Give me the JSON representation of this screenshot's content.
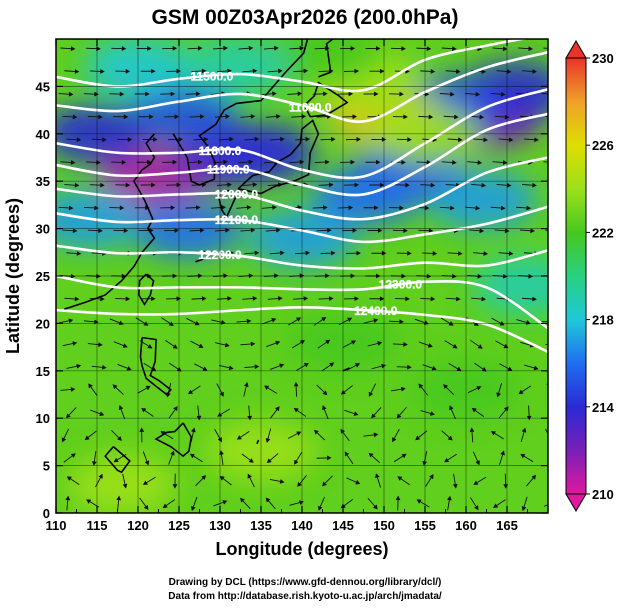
{
  "title": "GSM 00Z03Apr2026 (200.0hPa)",
  "xlabel": "Longitude (degrees)",
  "ylabel": "Latitude  (degrees)",
  "credits": [
    "Drawing by DCL (https://www.gfd-dennou.org/library/dcl/)",
    "Data from http://database.rish.kyoto-u.ac.jp/arch/jmadata/"
  ],
  "chart_data": {
    "type": "heatmap",
    "x_range": [
      110,
      170
    ],
    "y_range": [
      0,
      50
    ],
    "xticks": [
      "110",
      "115",
      "120",
      "125",
      "130",
      "135",
      "140",
      "145",
      "150",
      "155",
      "160",
      "165"
    ],
    "yticks": [
      "0",
      "5",
      "10",
      "15",
      "20",
      "25",
      "30",
      "35",
      "40",
      "45"
    ],
    "colorbar": {
      "range": [
        210,
        230
      ],
      "labels": [
        "230",
        "226",
        "222",
        "218",
        "214",
        "210"
      ],
      "stops": [
        "#e0189e",
        "#7a1fb8",
        "#2a2ad4",
        "#1f6ff0",
        "#1fc8d8",
        "#28d080",
        "#46c81e",
        "#9ce01a",
        "#dede00",
        "#f0a028",
        "#e8342a"
      ]
    },
    "contours": [
      {
        "label": "11500.0",
        "lat": [
          46.0,
          45.0,
          45.8,
          46.3,
          45.5,
          44.6,
          47.8,
          49.3,
          50.5
        ]
      },
      {
        "label": "11600.0",
        "lat": [
          43.0,
          42.4,
          43.4,
          44.2,
          43.0,
          41.3,
          44.4,
          47.0,
          48.6
        ]
      },
      {
        "label": "11800.0",
        "lat": [
          39.0,
          38.0,
          38.0,
          38.3,
          36.2,
          35.5,
          39.0,
          42.8,
          44.7
        ]
      },
      {
        "label": "11900.0",
        "lat": [
          36.7,
          35.6,
          35.9,
          36.3,
          34.6,
          33.6,
          36.5,
          40.4,
          42.1
        ]
      },
      {
        "label": "12000.0",
        "lat": [
          34.2,
          33.4,
          33.6,
          33.6,
          31.9,
          31.0,
          32.6,
          35.9,
          37.5
        ]
      },
      {
        "label": "12100.0",
        "lat": [
          31.6,
          30.7,
          30.9,
          30.9,
          29.8,
          28.6,
          29.4,
          30.5,
          32.3
        ]
      },
      {
        "label": "12200.0",
        "lat": [
          28.2,
          27.4,
          27.5,
          27.1,
          26.1,
          25.8,
          26.4,
          26.1,
          27.7
        ]
      },
      {
        "label": "12300.0",
        "lat": [
          25.0,
          23.8,
          23.8,
          23.8,
          23.6,
          23.6,
          24.4,
          23.8,
          19.5
        ]
      },
      {
        "label": "12400.0",
        "lat": [
          21.4,
          21.0,
          21.0,
          21.4,
          21.7,
          21.4,
          20.9,
          19.9,
          17.0
        ]
      }
    ],
    "colorfield_blobs": [
      {
        "lon": 122.0,
        "lat": 35.5,
        "value": 211
      },
      {
        "lon": 131.0,
        "lat": 37.5,
        "value": 213
      },
      {
        "lon": 115.0,
        "lat": 40.0,
        "value": 214
      },
      {
        "lon": 125.5,
        "lat": 42.0,
        "value": 215
      },
      {
        "lon": 135.0,
        "lat": 38.0,
        "value": 214
      },
      {
        "lon": 162.5,
        "lat": 41.5,
        "value": 212
      },
      {
        "lon": 166.0,
        "lat": 44.5,
        "value": 214
      },
      {
        "lon": 157.5,
        "lat": 43.0,
        "value": 215
      },
      {
        "lon": 153.0,
        "lat": 36.0,
        "value": 215
      },
      {
        "lon": 162.0,
        "lat": 33.0,
        "value": 217
      },
      {
        "lon": 148.0,
        "lat": 33.5,
        "value": 216
      },
      {
        "lon": 140.0,
        "lat": 29.0,
        "value": 217
      },
      {
        "lon": 126.0,
        "lat": 30.0,
        "value": 216
      },
      {
        "lon": 114.0,
        "lat": 31.0,
        "value": 217
      },
      {
        "lon": 150.0,
        "lat": 42.0,
        "value": 227
      },
      {
        "lon": 148.0,
        "lat": 45.5,
        "value": 224
      },
      {
        "lon": 155.0,
        "lat": 40.0,
        "value": 224
      },
      {
        "lon": 143.0,
        "lat": 48.5,
        "value": 222
      },
      {
        "lon": 120.0,
        "lat": 47.0,
        "value": 218
      },
      {
        "lon": 132.0,
        "lat": 47.0,
        "value": 219
      },
      {
        "lon": 167.5,
        "lat": 24.0,
        "value": 219
      },
      {
        "lon": 160.0,
        "lat": 13.0,
        "value": 222
      },
      {
        "lon": 135.0,
        "lat": 6.5,
        "value": 224
      },
      {
        "lon": 118.0,
        "lat": 3.0,
        "value": 224
      },
      {
        "lon": 145.0,
        "lat": 18.0,
        "value": 222
      }
    ]
  }
}
